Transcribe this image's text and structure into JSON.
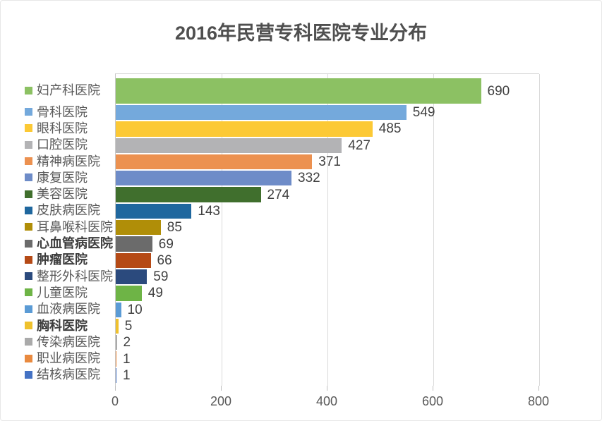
{
  "chart_data": {
    "type": "bar",
    "orientation": "horizontal",
    "title": "2016年民营专科医院专业分布",
    "categories": [
      "妇产科医院",
      "骨科医院",
      "眼科医院",
      "口腔医院",
      "精神病医院",
      "康复医院",
      "美容医院",
      "皮肤病医院",
      "耳鼻喉科医院",
      "心血管病医院",
      "肿瘤医院",
      "整形外科医院",
      "儿童医院",
      "血液病医院",
      "胸科医院",
      "传染病医院",
      "职业病医院",
      "结核病医院"
    ],
    "values": [
      690,
      549,
      485,
      427,
      371,
      332,
      274,
      143,
      85,
      69,
      66,
      59,
      49,
      10,
      5,
      2,
      1,
      1
    ],
    "colors": [
      "#8CC163",
      "#74A9DC",
      "#FCC935",
      "#B3B3B5",
      "#EC9150",
      "#6E8CC8",
      "#406F2D",
      "#1F679E",
      "#B08E08",
      "#6B6B6B",
      "#B54A16",
      "#2B4A7D",
      "#6EB446",
      "#5B9BD5",
      "#EFC12D",
      "#AAAAAA",
      "#E98A3F",
      "#4472C4"
    ],
    "bold_labels": [
      false,
      false,
      false,
      false,
      false,
      false,
      false,
      false,
      false,
      true,
      true,
      false,
      false,
      false,
      true,
      false,
      false,
      false
    ],
    "x_ticks": [
      0,
      200,
      400,
      600,
      800
    ],
    "xlim": [
      0,
      800
    ],
    "grid": "vertical",
    "legend_position": "left",
    "value_labels_shown": true
  },
  "style_colors": {
    "title_text": "#4f4f4f",
    "label_text": "#595959",
    "value_text": "#3f3f3f",
    "axis_text": "#595959",
    "gridline": "#d9d9d9",
    "axis_line": "#c9c9c9",
    "background": "#ffffff"
  }
}
